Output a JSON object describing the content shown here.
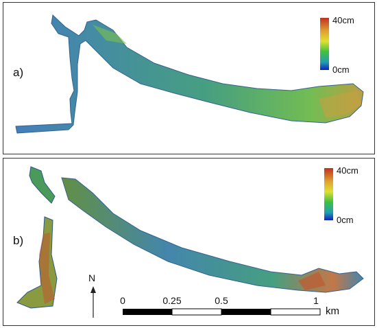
{
  "panels": [
    {
      "label": "a)",
      "colorbar": {
        "max_label": "40cm",
        "min_label": "0cm"
      }
    },
    {
      "label": "b)",
      "colorbar": {
        "max_label": "40cm",
        "min_label": "0cm"
      }
    }
  ],
  "colorbar_colors": [
    "#cc2020",
    "#f0a020",
    "#e8e820",
    "#30c030",
    "#20a0c0",
    "#1020c0"
  ],
  "north_label": "N",
  "scalebar": {
    "ticks": [
      "0",
      "0.25",
      "0.5",
      "1"
    ],
    "unit": "km"
  }
}
